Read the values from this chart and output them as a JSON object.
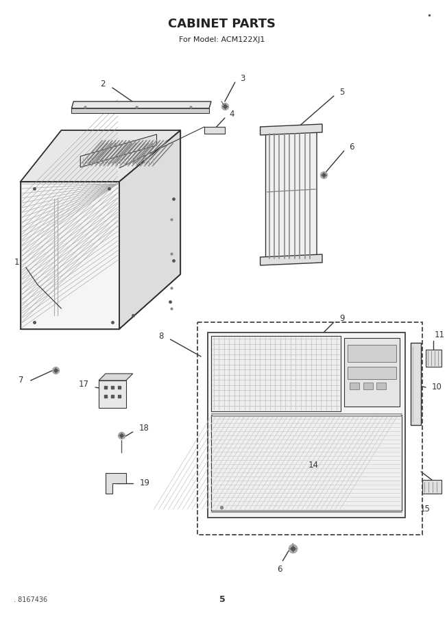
{
  "title": "CABINET PARTS",
  "subtitle": "For Model: ACM122XJ1",
  "footer_left": ". 8167436",
  "footer_center": "5",
  "bg_color": "#ffffff",
  "lc": "#333333",
  "tc": "#333333",
  "title_fontsize": 13,
  "subtitle_fontsize": 8,
  "label_fontsize": 8.5
}
